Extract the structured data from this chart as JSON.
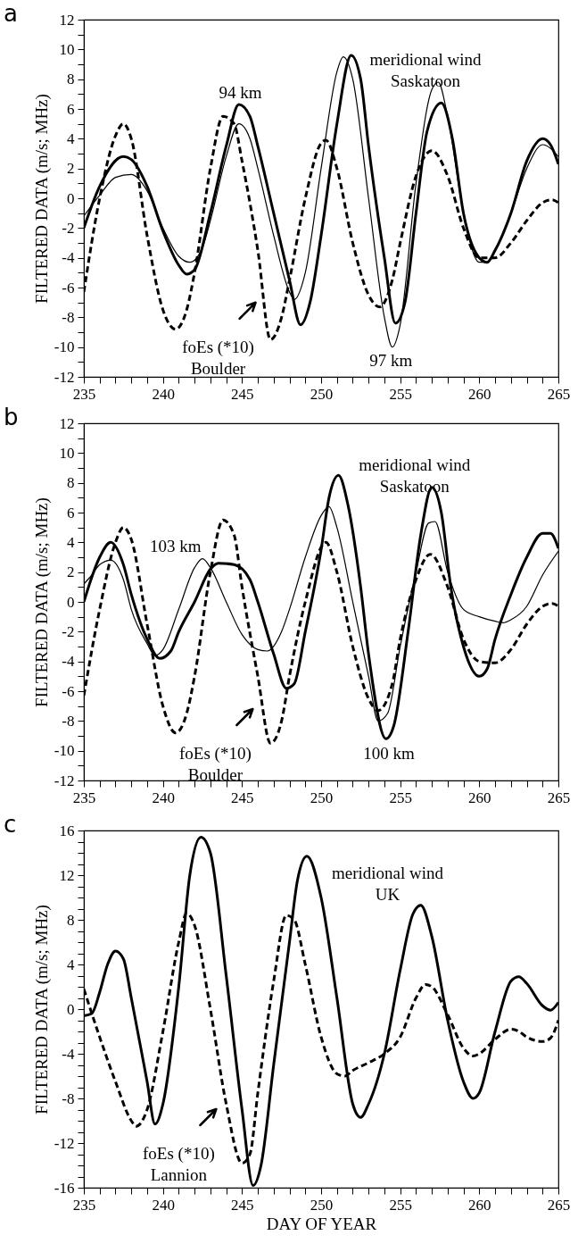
{
  "chart_data": [
    {
      "type": "line",
      "title": "a",
      "ylabel": "FILTERED DATA (m/s; MHz)",
      "xlim": [
        235,
        265
      ],
      "ylim": [
        -12,
        12
      ],
      "xticks": [
        235,
        {
          "value": 236,
          "label": null
        },
        {
          "value": 237,
          "label": null
        },
        {
          "value": 238,
          "label": null
        },
        {
          "value": 239,
          "label": null
        },
        240,
        {
          "value": 241,
          "label": null
        },
        {
          "value": 242,
          "label": null
        },
        {
          "value": 243,
          "label": null
        },
        {
          "value": 244,
          "label": null
        },
        245,
        {
          "value": 246,
          "label": null
        },
        {
          "value": 247,
          "label": null
        },
        {
          "value": 248,
          "label": null
        },
        {
          "value": 249,
          "label": null
        },
        250,
        {
          "value": 251,
          "label": null
        },
        {
          "value": 252,
          "label": null
        },
        {
          "value": 253,
          "label": null
        },
        {
          "value": 254,
          "label": null
        },
        255,
        {
          "value": 256,
          "label": null
        },
        {
          "value": 257,
          "label": null
        },
        {
          "value": 258,
          "label": null
        },
        {
          "value": 259,
          "label": null
        },
        260,
        {
          "value": 261,
          "label": null
        },
        {
          "value": 262,
          "label": null
        },
        {
          "value": 263,
          "label": null
        },
        {
          "value": 264,
          "label": null
        },
        265
      ],
      "yticks": [
        -12,
        {
          "value": -11,
          "label": null
        },
        -10,
        {
          "value": -9,
          "label": null
        },
        -8,
        {
          "value": -7,
          "label": null
        },
        -6,
        {
          "value": -5,
          "label": null
        },
        -4,
        {
          "value": -3,
          "label": null
        },
        -2,
        {
          "value": -1,
          "label": null
        },
        0,
        {
          "value": 1,
          "label": null
        },
        2,
        {
          "value": 3,
          "label": null
        },
        4,
        {
          "value": 5,
          "label": null
        },
        6,
        {
          "value": 7,
          "label": null
        },
        8,
        {
          "value": 9,
          "label": null
        },
        10,
        {
          "value": 11,
          "label": null
        },
        12
      ],
      "series": [
        {
          "color": "#000000",
          "line_style": "solid",
          "x": [
            235,
            236,
            237.5,
            238,
            239,
            240,
            241,
            241.5,
            242,
            243,
            244,
            244.8,
            245.5,
            246,
            247,
            248,
            248.7,
            249.3,
            250,
            251,
            251.9,
            252.5,
            253,
            254,
            254.7,
            255.3,
            256,
            256.7,
            257.6,
            258.3,
            259,
            260,
            260.5,
            261,
            262,
            263,
            264,
            264.5,
            265
          ],
          "values": [
            -2.0,
            0.8,
            2.8,
            2.6,
            0.8,
            -2.2,
            -4.5,
            -5.1,
            -4.8,
            -1,
            3.5,
            6.3,
            5.5,
            3.5,
            -1,
            -5.5,
            -8.5,
            -7,
            -2.5,
            5,
            9.6,
            8,
            3.5,
            -4,
            -8.4,
            -7,
            -1,
            4.5,
            6.4,
            4,
            -1,
            -4,
            -4.3,
            -3.5,
            -1,
            2.5,
            4.0,
            3.6,
            2.3
          ]
        },
        {
          "color": "#000000",
          "line_style": "solid",
          "x": [
            235,
            236,
            237,
            238,
            239,
            240,
            241,
            241.7,
            242.5,
            243,
            244,
            244.8,
            245.5,
            246,
            247,
            248,
            248.3,
            249,
            250,
            251,
            251.4,
            252,
            253,
            254,
            254.5,
            255,
            256,
            257,
            257.4,
            258,
            259,
            260,
            260.5,
            261,
            262,
            263,
            264,
            265
          ],
          "values": [
            -1.2,
            0.2,
            1.4,
            1.6,
            0.5,
            -2,
            -3.9,
            -4.3,
            -3.3,
            -1.5,
            2.8,
            5.0,
            4,
            2,
            -2.5,
            -6.3,
            -6.8,
            -5,
            2,
            8.5,
            9.5,
            8,
            0,
            -8,
            -10,
            -8.5,
            1,
            7.3,
            7.8,
            5.5,
            -1,
            -4.3,
            -4.3,
            -3.5,
            -1,
            2,
            3.6,
            2.8
          ]
        },
        {
          "color": "#000000",
          "line_style": "dashed",
          "x": [
            235,
            236,
            237,
            237.5,
            238,
            239,
            240,
            240.8,
            241.5,
            242,
            243,
            243.8,
            244.5,
            245,
            246,
            246.8,
            247.5,
            248,
            249,
            250,
            250.3,
            251,
            252,
            253,
            253.7,
            254.5,
            255,
            256,
            257,
            258,
            259,
            260,
            261,
            262,
            263,
            264,
            264.6,
            265
          ],
          "values": [
            -6.3,
            0,
            4.2,
            5.0,
            4,
            -2.5,
            -7.5,
            -8.8,
            -7.5,
            -5,
            2,
            5.5,
            5,
            2.5,
            -3.5,
            -9.5,
            -8,
            -5.5,
            0,
            3.7,
            3.9,
            2,
            -3,
            -6.5,
            -7.3,
            -5.5,
            -3,
            1.5,
            3.2,
            1.5,
            -2,
            -4,
            -4,
            -3,
            -1.5,
            -0.3,
            -0.1,
            -0.3
          ]
        }
      ],
      "annotations": [
        "94 km",
        "meridional wind\nSaskatoon",
        "97 km",
        "foEs (*10)\nBoulder"
      ]
    },
    {
      "type": "line",
      "title": "b",
      "ylabel": "FILTERED DATA (m/s; MHz)",
      "xlim": [
        235,
        265
      ],
      "ylim": [
        -12,
        12
      ],
      "xticks": [
        235,
        {
          "value": 236,
          "label": null
        },
        {
          "value": 237,
          "label": null
        },
        {
          "value": 238,
          "label": null
        },
        {
          "value": 239,
          "label": null
        },
        240,
        {
          "value": 241,
          "label": null
        },
        {
          "value": 242,
          "label": null
        },
        {
          "value": 243,
          "label": null
        },
        {
          "value": 244,
          "label": null
        },
        245,
        {
          "value": 246,
          "label": null
        },
        {
          "value": 247,
          "label": null
        },
        {
          "value": 248,
          "label": null
        },
        {
          "value": 249,
          "label": null
        },
        250,
        {
          "value": 251,
          "label": null
        },
        {
          "value": 252,
          "label": null
        },
        {
          "value": 253,
          "label": null
        },
        {
          "value": 254,
          "label": null
        },
        255,
        {
          "value": 256,
          "label": null
        },
        {
          "value": 257,
          "label": null
        },
        {
          "value": 258,
          "label": null
        },
        {
          "value": 259,
          "label": null
        },
        260,
        {
          "value": 261,
          "label": null
        },
        {
          "value": 262,
          "label": null
        },
        {
          "value": 263,
          "label": null
        },
        {
          "value": 264,
          "label": null
        },
        265
      ],
      "yticks": [
        -12,
        {
          "value": -11,
          "label": null
        },
        -10,
        {
          "value": -9,
          "label": null
        },
        -8,
        {
          "value": -7,
          "label": null
        },
        -6,
        {
          "value": -5,
          "label": null
        },
        -4,
        {
          "value": -3,
          "label": null
        },
        -2,
        {
          "value": -1,
          "label": null
        },
        0,
        {
          "value": 1,
          "label": null
        },
        2,
        {
          "value": 3,
          "label": null
        },
        4,
        {
          "value": 5,
          "label": null
        },
        6,
        {
          "value": 7,
          "label": null
        },
        8,
        {
          "value": 9,
          "label": null
        },
        10,
        {
          "value": 11,
          "label": null
        },
        12
      ],
      "series": [
        {
          "color": "#000000",
          "line_style": "solid",
          "x": [
            235,
            236,
            236.7,
            237.5,
            238,
            239,
            239.8,
            240.5,
            241,
            242,
            243,
            243.5,
            244.5,
            245.5,
            246,
            247,
            247.8,
            248.3,
            249,
            250,
            250.5,
            251.1,
            251.7,
            252.5,
            253,
            254.1,
            254.6,
            255.5,
            256.3,
            257,
            257.6,
            258.2,
            259,
            260,
            260.5,
            261,
            262,
            263,
            264,
            264.5,
            265
          ],
          "values": [
            0,
            3,
            4.0,
            2.5,
            0.5,
            -2.5,
            -3.8,
            -3.3,
            -2,
            0,
            2.2,
            2.6,
            2.5,
            1.5,
            0,
            -3.5,
            -5.8,
            -5.5,
            -2,
            3.5,
            7,
            8.5,
            6.5,
            1,
            -3.5,
            -9.2,
            -8.3,
            -2,
            4.5,
            7.7,
            6,
            1,
            -3,
            -5.0,
            -4.5,
            -2.5,
            0.5,
            3,
            4.6,
            4.6,
            3.6
          ]
        },
        {
          "color": "#000000",
          "line_style": "solid",
          "x": [
            235,
            235.5,
            236,
            236.7,
            237.5,
            238,
            239,
            239.5,
            240,
            241,
            242,
            242.5,
            243,
            244,
            245,
            246,
            246.6,
            247.5,
            248,
            249,
            250,
            250.5,
            251,
            252,
            253,
            253.6,
            254.2,
            255,
            256,
            256.8,
            257.2,
            258,
            259,
            260,
            261,
            261.5,
            262,
            263,
            264,
            265
          ],
          "values": [
            1.2,
            1.8,
            2.5,
            2.8,
            1.5,
            -0.5,
            -2.8,
            -3.6,
            -3.2,
            -0.5,
            2.3,
            2.9,
            2.3,
            0,
            -2.2,
            -3.2,
            -3.3,
            -2,
            -0.5,
            3,
            5.8,
            6.4,
            5,
            0,
            -5,
            -8,
            -7.5,
            -3,
            2,
            5.3,
            5.4,
            2,
            -0.5,
            -1,
            -1.3,
            -1.4,
            -1.2,
            -0.3,
            1.8,
            3.4
          ]
        },
        {
          "color": "#000000",
          "line_style": "dashed",
          "x": [
            235,
            236,
            237,
            237.5,
            238,
            239,
            240,
            240.8,
            241.5,
            242,
            243,
            243.8,
            244.5,
            245,
            246,
            246.8,
            247.5,
            248,
            249,
            250.3,
            251,
            252,
            253,
            253.6,
            254.5,
            255,
            256,
            256.9,
            258,
            259,
            260,
            261,
            262,
            263,
            264,
            264.6,
            265
          ],
          "values": [
            -6.3,
            -0.5,
            4.0,
            5.0,
            4.2,
            -1.5,
            -7,
            -8.8,
            -7.5,
            -5,
            2,
            5.5,
            4.5,
            1,
            -5,
            -9.5,
            -8,
            -5,
            0,
            4,
            2,
            -3,
            -6.5,
            -7.3,
            -5.5,
            -2.5,
            1.5,
            3.2,
            1,
            -2.5,
            -4,
            -4.1,
            -3.2,
            -1.5,
            -0.3,
            -0.1,
            -0.3
          ]
        }
      ],
      "annotations": [
        "103 km",
        "meridional wind\nSaskatoon",
        "100 km",
        "foEs (*10)\nBoulder"
      ]
    },
    {
      "type": "line",
      "title": "c",
      "xlabel": "DAY OF YEAR",
      "ylabel": "FILTERED DATA (m/s; MHz)",
      "xlim": [
        235,
        265
      ],
      "ylim": [
        -16,
        16
      ],
      "xticks": [
        235,
        {
          "value": 236,
          "label": null
        },
        {
          "value": 237,
          "label": null
        },
        {
          "value": 238,
          "label": null
        },
        {
          "value": 239,
          "label": null
        },
        240,
        {
          "value": 241,
          "label": null
        },
        {
          "value": 242,
          "label": null
        },
        {
          "value": 243,
          "label": null
        },
        {
          "value": 244,
          "label": null
        },
        245,
        {
          "value": 246,
          "label": null
        },
        {
          "value": 247,
          "label": null
        },
        {
          "value": 248,
          "label": null
        },
        {
          "value": 249,
          "label": null
        },
        250,
        {
          "value": 251,
          "label": null
        },
        {
          "value": 252,
          "label": null
        },
        {
          "value": 253,
          "label": null
        },
        {
          "value": 254,
          "label": null
        },
        255,
        {
          "value": 256,
          "label": null
        },
        {
          "value": 257,
          "label": null
        },
        {
          "value": 258,
          "label": null
        },
        {
          "value": 259,
          "label": null
        },
        260,
        {
          "value": 261,
          "label": null
        },
        {
          "value": 262,
          "label": null
        },
        {
          "value": 263,
          "label": null
        },
        {
          "value": 264,
          "label": null
        },
        265
      ],
      "yticks": [
        -16,
        {
          "value": -15,
          "label": null
        },
        {
          "value": -14,
          "label": null
        },
        {
          "value": -13,
          "label": null
        },
        -12,
        {
          "value": -11,
          "label": null
        },
        {
          "value": -10,
          "label": null
        },
        {
          "value": -9,
          "label": null
        },
        -8,
        {
          "value": -7,
          "label": null
        },
        {
          "value": -6,
          "label": null
        },
        {
          "value": -5,
          "label": null
        },
        -4,
        {
          "value": -3,
          "label": null
        },
        {
          "value": -2,
          "label": null
        },
        {
          "value": -1,
          "label": null
        },
        0,
        {
          "value": 1,
          "label": null
        },
        {
          "value": 2,
          "label": null
        },
        {
          "value": 3,
          "label": null
        },
        4,
        {
          "value": 5,
          "label": null
        },
        {
          "value": 6,
          "label": null
        },
        {
          "value": 7,
          "label": null
        },
        8,
        {
          "value": 9,
          "label": null
        },
        {
          "value": 10,
          "label": null
        },
        {
          "value": 11,
          "label": null
        },
        12,
        {
          "value": 13,
          "label": null
        },
        {
          "value": 14,
          "label": null
        },
        {
          "value": 15,
          "label": null
        },
        16
      ],
      "series": [
        {
          "color": "#000000",
          "line_style": "solid",
          "x": [
            235,
            235.5,
            236,
            236.5,
            237,
            237.5,
            238,
            239,
            239.5,
            240,
            241,
            241.7,
            242.4,
            243,
            244,
            245,
            245.7,
            246.2,
            247,
            248,
            248.5,
            249.1,
            250,
            251,
            252,
            252.5,
            253,
            254,
            255,
            255.8,
            256.3,
            257,
            258,
            259,
            259.6,
            260,
            261,
            262,
            262.5,
            263,
            264,
            264.5,
            265
          ],
          "values": [
            -0.6,
            -0.4,
            1.5,
            4,
            5.2,
            4.5,
            1,
            -6.5,
            -10.3,
            -8.5,
            2,
            12,
            15.4,
            14,
            3,
            -9,
            -15.8,
            -14,
            -5,
            6,
            11.5,
            13.7,
            10,
            1,
            -8.5,
            -9.7,
            -8.5,
            -4,
            3.5,
            8.5,
            9.3,
            6.5,
            -1,
            -6.5,
            -8,
            -7.5,
            -2,
            2.5,
            2.9,
            2.3,
            0.3,
            -0.1,
            0.6
          ]
        },
        {
          "color": "#000000",
          "line_style": "dashed",
          "x": [
            235,
            236,
            237,
            238,
            238.3,
            239,
            240,
            241,
            241.5,
            242,
            243,
            244,
            245,
            245.5,
            246,
            247,
            247.8,
            248.3,
            249,
            250,
            251,
            251.5,
            252,
            253,
            254,
            255,
            256,
            256.6,
            257,
            258,
            259,
            259.6,
            260,
            261,
            262,
            262.5,
            263,
            264,
            264.5,
            265
          ],
          "values": [
            1.8,
            -2.5,
            -6.5,
            -10,
            -10.5,
            -9,
            -2,
            6,
            8.6,
            7.5,
            0,
            -8.5,
            -13.8,
            -13,
            -7.5,
            2.5,
            8.4,
            8,
            4,
            -2.5,
            -5.8,
            -6,
            -5.5,
            -4.8,
            -4,
            -2.5,
            1,
            2.2,
            2,
            -0.5,
            -3.5,
            -4.2,
            -4,
            -2.7,
            -1.8,
            -2,
            -2.5,
            -2.9,
            -2.6,
            -1.0
          ]
        }
      ],
      "annotations": [
        "meridional wind\nUK",
        "foEs (*10)\nLannion"
      ]
    }
  ]
}
